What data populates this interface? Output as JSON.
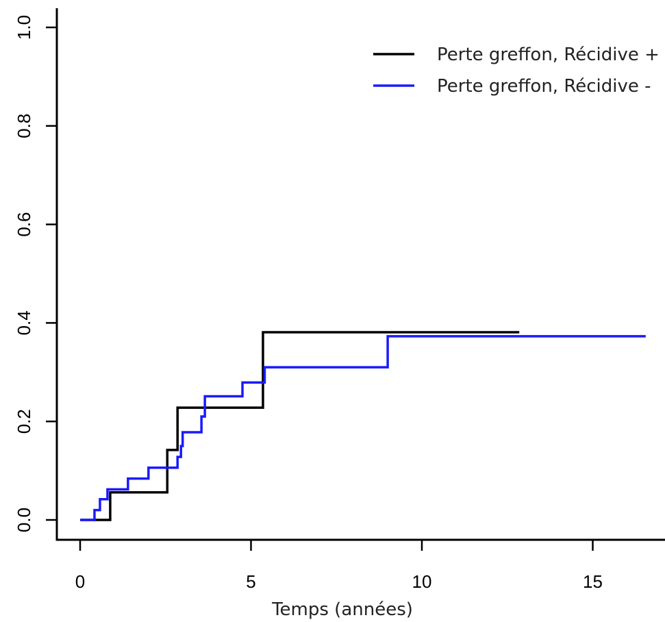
{
  "chart_data": {
    "type": "line",
    "step": true,
    "title": "",
    "xlabel": "Temps (années)",
    "ylabel": "",
    "xlim": [
      0,
      17.1
    ],
    "ylim": [
      0,
      1.0
    ],
    "xticks": [
      0,
      5,
      10,
      15
    ],
    "yticks": [
      0.0,
      0.2,
      0.4,
      0.6,
      0.8,
      1.0
    ],
    "xtick_labels": [
      "0",
      "5",
      "10",
      "15"
    ],
    "ytick_labels": [
      "0.0",
      "0.2",
      "0.4",
      "0.6",
      "0.8",
      "1.0"
    ],
    "grid": false,
    "legend_position": "top-right",
    "series": [
      {
        "name": "Perte greffon, Récidive +",
        "color": "#000000",
        "x": [
          0,
          0.88,
          2.55,
          2.85,
          5.35,
          12.85
        ],
        "y": [
          0,
          0.056,
          0.142,
          0.228,
          0.381,
          0.381
        ]
      },
      {
        "name": "Perte greffon, Récidive -",
        "color": "#1a1aff",
        "x": [
          0,
          0.42,
          0.58,
          0.8,
          1.4,
          2.0,
          2.85,
          2.95,
          3.0,
          3.55,
          3.65,
          4.75,
          5.4,
          9.0,
          16.55
        ],
        "y": [
          0,
          0.02,
          0.042,
          0.062,
          0.084,
          0.106,
          0.128,
          0.15,
          0.178,
          0.21,
          0.251,
          0.279,
          0.31,
          0.373,
          0.373
        ]
      }
    ]
  }
}
